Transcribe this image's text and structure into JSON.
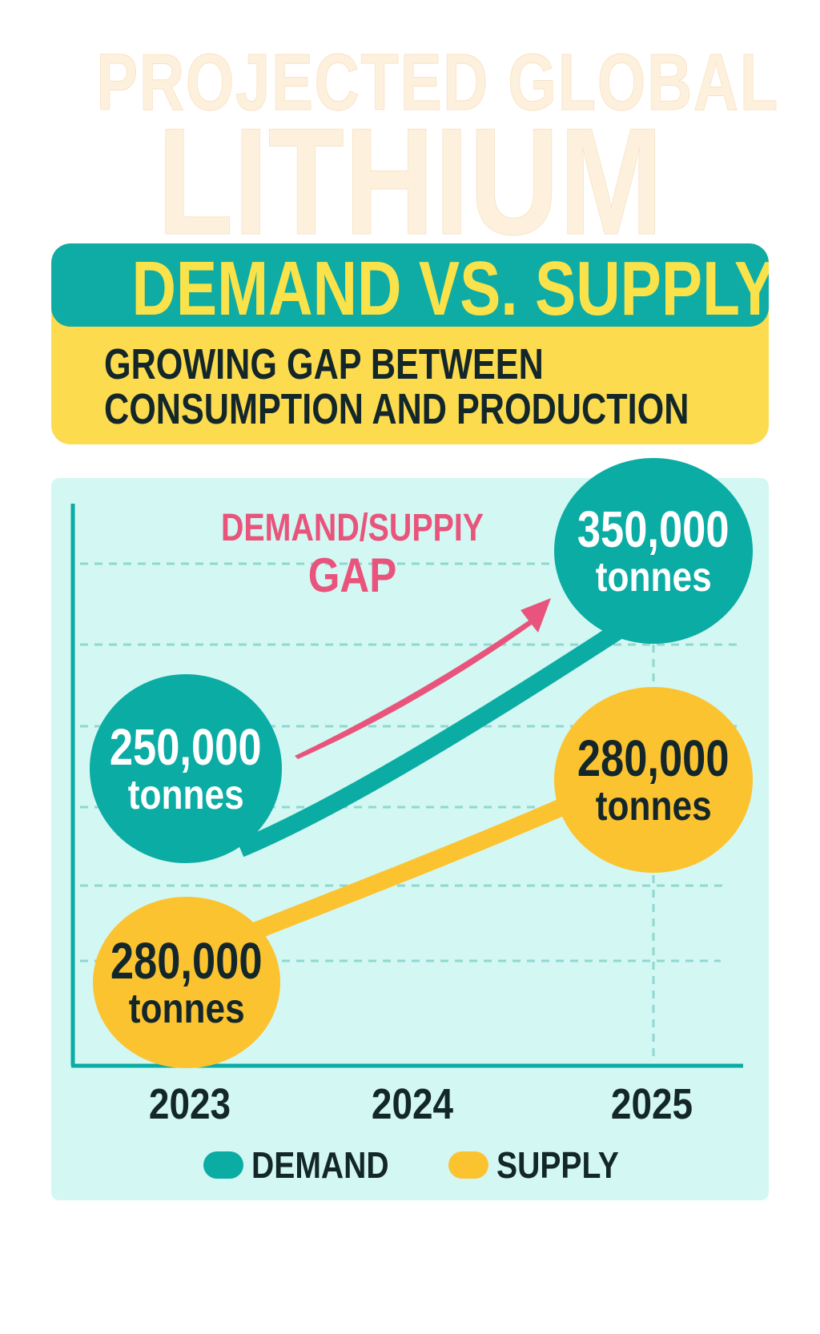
{
  "header": {
    "title_line1": "PROJECTED GLOBAL",
    "title_line2": "LITHIUM",
    "banner_title": "DEMAND VS. SUPPLY",
    "subtitle_line1": "GROWING GAP BETWEEN",
    "subtitle_line2": "CONSUMPTION AND PRODUCTION"
  },
  "colors": {
    "demand": "#0aaca4",
    "supply": "#fbc330",
    "gap": "#e9547c",
    "panel": "#d3f7f2",
    "banner_yellow": "#fcdb4e"
  },
  "chart_data": {
    "type": "line",
    "title": "DEMAND VS. SUPPLY",
    "categories": [
      "2023",
      "2024",
      "2025"
    ],
    "series": [
      {
        "name": "DEMAND",
        "values": [
          250000,
          null,
          350000
        ],
        "labels": [
          "250,000",
          null,
          "350,000"
        ]
      },
      {
        "name": "SUPPLY",
        "values": [
          280000,
          null,
          280000
        ],
        "labels": [
          "280,000",
          null,
          "280,000"
        ]
      }
    ],
    "unit": "tonnes",
    "annotation": {
      "line1": "DEMAND/SUPPIY",
      "line2": "GAP"
    },
    "legend": {
      "placement": "bottom",
      "entries": [
        "DEMAND",
        "SUPPLY"
      ]
    },
    "grid": true
  }
}
